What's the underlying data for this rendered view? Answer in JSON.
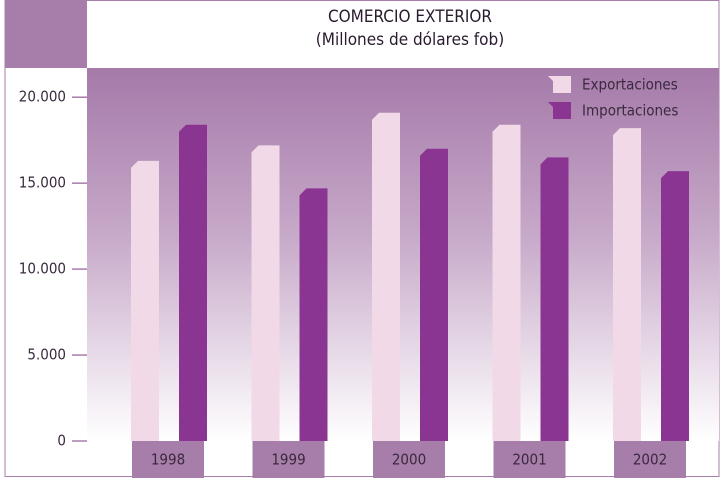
{
  "chart_data": {
    "type": "bar",
    "title": "COMERCIO EXTERIOR",
    "subtitle": "(Millones de dólares fob)",
    "categories": [
      "1998",
      "1999",
      "2000",
      "2001",
      "2002"
    ],
    "series": [
      {
        "name": "Exportaciones",
        "color": "#f1d9e7",
        "values": [
          16300,
          17200,
          19100,
          18400,
          18200
        ]
      },
      {
        "name": "Importaciones",
        "color": "#8b3593",
        "values": [
          18400,
          14700,
          17000,
          16500,
          15700
        ]
      }
    ],
    "ylim": [
      0,
      21700
    ],
    "yticks": [
      0,
      {
        "value": 5000,
        "label": "5.000"
      },
      {
        "value": 10000,
        "label": "10.000"
      },
      {
        "value": 15000,
        "label": "15.000"
      },
      {
        "value": 20000,
        "label": "20.000"
      }
    ],
    "legend": "upper right"
  }
}
